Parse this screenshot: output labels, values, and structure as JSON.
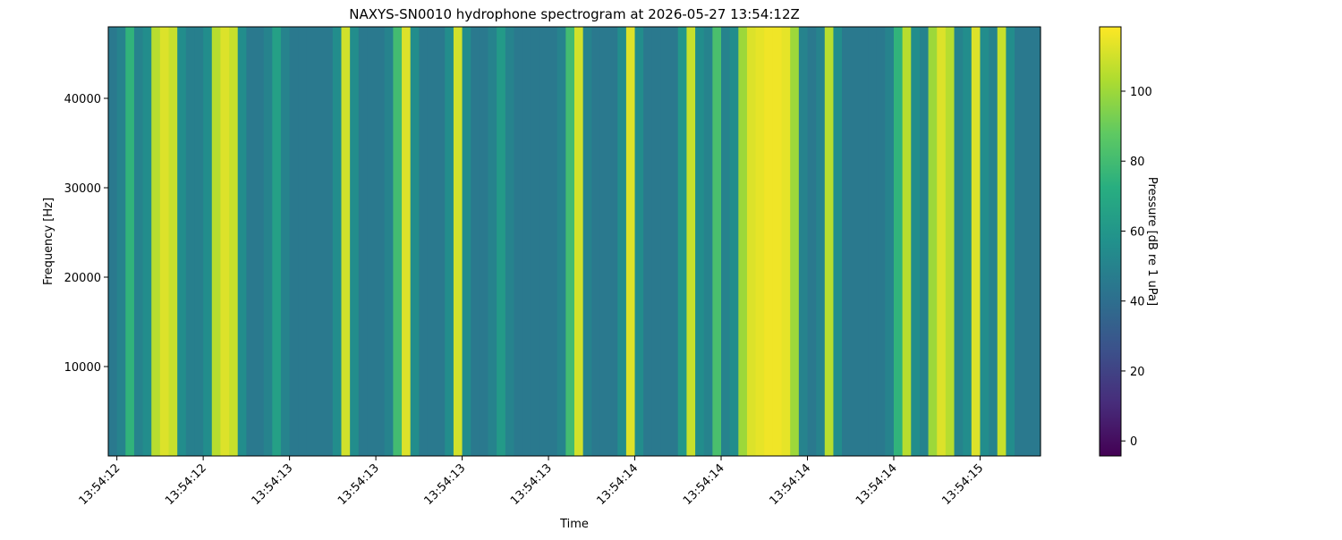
{
  "chart_data": {
    "type": "spectrogram",
    "title": "NAXYS-SN0010 hydrophone spectrogram at 2026-05-27 13:54:12Z",
    "xlabel": "Time",
    "ylabel": "Frequency [Hz]",
    "colormap": "viridis",
    "x": [
      12.4875,
      12.5125,
      12.5375,
      12.5625,
      12.5875,
      12.6125,
      12.6375,
      12.6625,
      12.6875,
      12.7125,
      12.7375,
      12.7625,
      12.7875,
      12.8125,
      12.8375,
      12.8625,
      12.8875,
      12.9125,
      12.9375,
      12.9625,
      12.9875,
      13.0125,
      13.0375,
      13.0625,
      13.0875,
      13.1125,
      13.1375,
      13.1625,
      13.1875,
      13.2125,
      13.2375,
      13.2625,
      13.2875,
      13.3125,
      13.3375,
      13.3625,
      13.3875,
      13.4125,
      13.4375,
      13.4625,
      13.4875,
      13.5125,
      13.5375,
      13.5625,
      13.5875,
      13.6125,
      13.6375,
      13.6625,
      13.6875,
      13.7125,
      13.7375,
      13.7625,
      13.7875,
      13.8125,
      13.8375,
      13.8625,
      13.8875,
      13.9125,
      13.9375,
      13.9625,
      13.9875,
      14.0125,
      14.0375,
      14.0625,
      14.0875,
      14.1125,
      14.1375,
      14.1625,
      14.1875,
      14.2125,
      14.2375,
      14.2625,
      14.2875,
      14.3125,
      14.3375,
      14.3625,
      14.3875,
      14.4125,
      14.4375,
      14.4625,
      14.4875,
      14.5125,
      14.5375,
      14.5625,
      14.5875,
      14.6125,
      14.6375,
      14.6625,
      14.6875,
      14.7125,
      14.7375,
      14.7625,
      14.7875,
      14.8125,
      14.8375,
      14.8625,
      14.8875,
      14.9125,
      14.9375,
      14.9625,
      14.9875,
      15.0125,
      15.0375,
      15.0625,
      15.0875,
      15.1125,
      15.1375,
      15.1625
    ],
    "values": [
      45,
      50,
      75,
      50,
      55,
      105,
      112,
      108,
      55,
      48,
      48,
      55,
      105,
      112,
      108,
      55,
      45,
      45,
      50,
      65,
      50,
      45,
      45,
      45,
      45,
      45,
      55,
      110,
      55,
      45,
      45,
      45,
      50,
      80,
      112,
      55,
      45,
      45,
      45,
      55,
      110,
      55,
      45,
      45,
      50,
      62,
      50,
      45,
      45,
      45,
      45,
      45,
      50,
      80,
      110,
      50,
      45,
      45,
      45,
      55,
      112,
      55,
      45,
      45,
      45,
      45,
      60,
      108,
      55,
      50,
      82,
      50,
      55,
      100,
      112,
      114,
      116,
      116,
      114,
      100,
      50,
      45,
      50,
      105,
      55,
      45,
      45,
      45,
      45,
      45,
      50,
      75,
      105,
      55,
      50,
      100,
      112,
      105,
      50,
      55,
      112,
      55,
      50,
      108,
      55,
      45,
      45,
      45
    ],
    "xlim": [
      12.475,
      15.175
    ],
    "xticks": [
      {
        "value": 12.5,
        "label": "13:54:12"
      },
      {
        "value": 12.75,
        "label": "13:54:12"
      },
      {
        "value": 13.0,
        "label": "13:54:13"
      },
      {
        "value": 13.25,
        "label": "13:54:13"
      },
      {
        "value": 13.5,
        "label": "13:54:13"
      },
      {
        "value": 13.75,
        "label": "13:54:13"
      },
      {
        "value": 14.0,
        "label": "13:54:14"
      },
      {
        "value": 14.25,
        "label": "13:54:14"
      },
      {
        "value": 14.5,
        "label": "13:54:14"
      },
      {
        "value": 14.75,
        "label": "13:54:14"
      },
      {
        "value": 15.0,
        "label": "13:54:15"
      }
    ],
    "ylim": [
      0,
      48000
    ],
    "yticks": [
      10000,
      20000,
      30000,
      40000
    ],
    "colorbar": {
      "label": "Pressure [dB re 1 uPa]",
      "lim": [
        -4.3,
        118.4
      ],
      "ticks": [
        0,
        20,
        40,
        60,
        80,
        100
      ]
    }
  }
}
